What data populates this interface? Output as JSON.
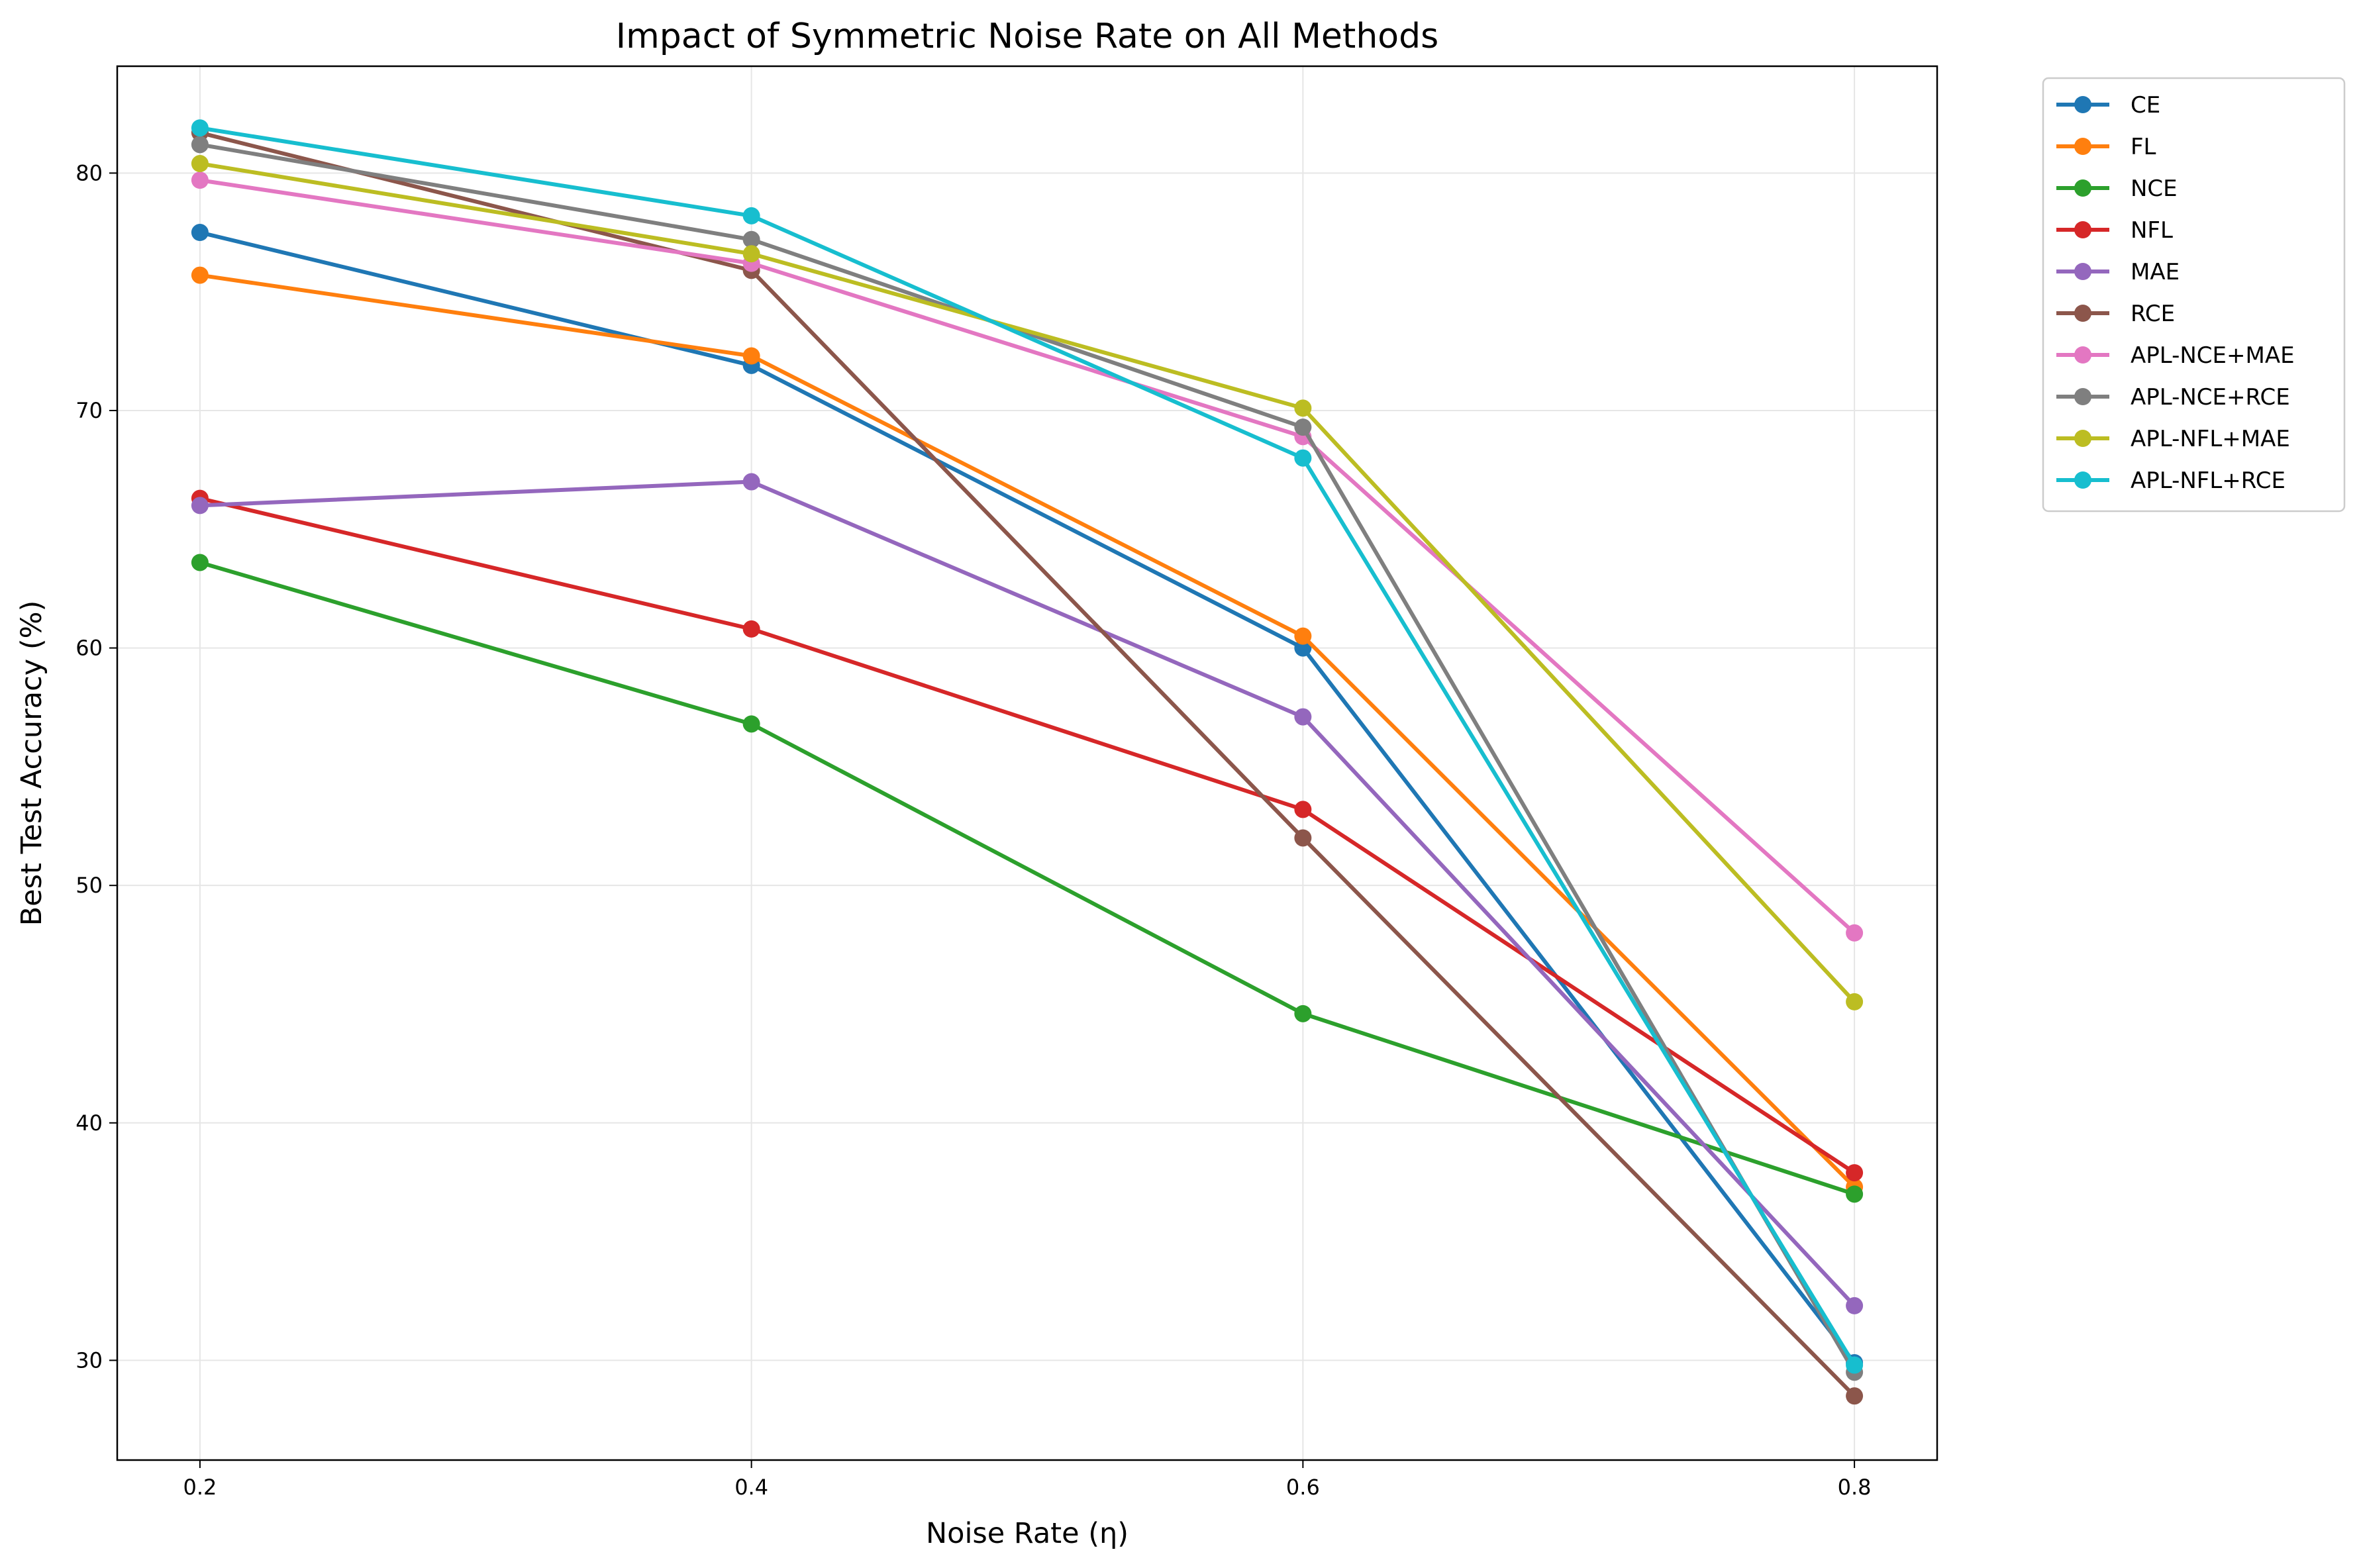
{
  "chart_data": {
    "type": "line",
    "title": "Impact of Symmetric Noise Rate on All Methods",
    "xlabel": "Noise Rate (η)",
    "ylabel": "Best Test Accuracy (%)",
    "x": [
      0.2,
      0.4,
      0.6,
      0.8
    ],
    "x_tick_labels": [
      "0.2",
      "0.4",
      "0.6",
      "0.8"
    ],
    "xlim": [
      0.17,
      0.83
    ],
    "y_ticks": [
      30,
      40,
      50,
      60,
      70,
      80
    ],
    "y_tick_labels": [
      "30",
      "40",
      "50",
      "60",
      "70",
      "80"
    ],
    "ylim": [
      25.8,
      84.5
    ],
    "grid": true,
    "legend_position": "outside-right-top",
    "series": [
      {
        "name": "CE",
        "color": "#1f77b4",
        "values": [
          77.5,
          71.9,
          60.0,
          29.9
        ]
      },
      {
        "name": "FL",
        "color": "#ff7f0e",
        "values": [
          75.7,
          72.3,
          60.5,
          37.3
        ]
      },
      {
        "name": "NCE",
        "color": "#2ca02c",
        "values": [
          63.6,
          56.8,
          44.6,
          37.0
        ]
      },
      {
        "name": "NFL",
        "color": "#d62728",
        "values": [
          66.3,
          60.8,
          53.2,
          37.9
        ]
      },
      {
        "name": "MAE",
        "color": "#9467bd",
        "values": [
          66.0,
          67.0,
          57.1,
          32.3
        ]
      },
      {
        "name": "RCE",
        "color": "#8c564b",
        "values": [
          81.7,
          75.9,
          52.0,
          28.5
        ]
      },
      {
        "name": "APL-NCE+MAE",
        "color": "#e377c2",
        "values": [
          79.7,
          76.2,
          68.9,
          48.0
        ]
      },
      {
        "name": "APL-NCE+RCE",
        "color": "#7f7f7f",
        "values": [
          81.2,
          77.2,
          69.3,
          29.5
        ]
      },
      {
        "name": "APL-NFL+MAE",
        "color": "#bcbd22",
        "values": [
          80.4,
          76.6,
          70.1,
          45.1
        ]
      },
      {
        "name": "APL-NFL+RCE",
        "color": "#17becf",
        "values": [
          81.9,
          78.2,
          68.0,
          29.8
        ]
      }
    ]
  }
}
